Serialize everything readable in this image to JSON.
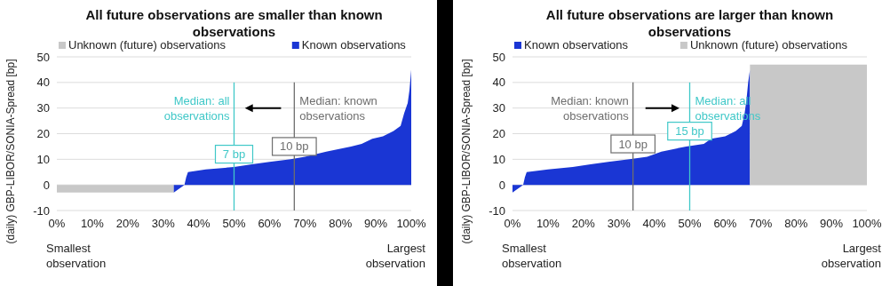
{
  "chart_data": [
    {
      "type": "area",
      "title": "All future observations are smaller than known observations",
      "ylabel": "(daily) GBP-LIBOR/SONIA-Spread [bp]",
      "legend": "top",
      "grid": "y",
      "xlim": [
        0,
        100
      ],
      "xticks": [
        {
          "value": 0,
          "label": "0%"
        },
        {
          "value": 10,
          "label": "10%"
        },
        {
          "value": 20,
          "label": "20%"
        },
        {
          "value": 30,
          "label": "30%"
        },
        {
          "value": 40,
          "label": "40%"
        },
        {
          "value": 50,
          "label": "50%"
        },
        {
          "value": 60,
          "label": "60%"
        },
        {
          "value": 70,
          "label": "70%"
        },
        {
          "value": 80,
          "label": "80%"
        },
        {
          "value": 90,
          "label": "90%"
        },
        {
          "value": 100,
          "label": "100%"
        }
      ],
      "ylim": [
        -10,
        50
      ],
      "yticks": [
        -10,
        0,
        10,
        20,
        30,
        40,
        50
      ],
      "series": [
        {
          "name": "Unknown (future) observations",
          "color": "#c8c8c8",
          "x": [
            0,
            33
          ],
          "values": [
            -3,
            -3
          ]
        },
        {
          "name": "Known observations",
          "color": "#1a36d4",
          "x": [
            33,
            36,
            36.5,
            37,
            42,
            50,
            55,
            60,
            66,
            70,
            76,
            83,
            86,
            89,
            92,
            95,
            97,
            98,
            99,
            99.5,
            100
          ],
          "values": [
            -3,
            0,
            3,
            5,
            6,
            7,
            8,
            9,
            10,
            11,
            13,
            15,
            16,
            18,
            19,
            21,
            23,
            28,
            32,
            37,
            45
          ]
        }
      ],
      "ref_lines": [
        {
          "axis": "x",
          "value": 50,
          "label": "Median: all observations",
          "color": "#40c8c8"
        },
        {
          "axis": "x",
          "value": 67,
          "label": "Median: known observations",
          "color": "#6e6e6e"
        }
      ],
      "annotations": [
        {
          "text": "7 bp",
          "x": 50,
          "y": 12
        },
        {
          "text": "10 bp",
          "x": 67,
          "y": 15
        },
        "Smallest observation",
        "Largest observation"
      ]
    },
    {
      "type": "area",
      "title": "All future observations are larger than known observations",
      "ylabel": "(daily) GBP-LIBOR/SONIA-Spread [bp]",
      "legend": "top",
      "grid": "y",
      "xlim": [
        0,
        100
      ],
      "xticks": [
        {
          "value": 0,
          "label": "0%"
        },
        {
          "value": 10,
          "label": "10%"
        },
        {
          "value": 20,
          "label": "20%"
        },
        {
          "value": 30,
          "label": "30%"
        },
        {
          "value": 40,
          "label": "40%"
        },
        {
          "value": 50,
          "label": "50%"
        },
        {
          "value": 60,
          "label": "60%"
        },
        {
          "value": 70,
          "label": "70%"
        },
        {
          "value": 80,
          "label": "80%"
        },
        {
          "value": 90,
          "label": "90%"
        },
        {
          "value": 100,
          "label": "100%"
        }
      ],
      "ylim": [
        -10,
        50
      ],
      "yticks": [
        -10,
        0,
        10,
        20,
        30,
        40,
        50
      ],
      "series": [
        {
          "name": "Known observations",
          "color": "#1a36d4",
          "x": [
            0,
            3,
            3.5,
            4,
            10,
            17,
            22,
            27,
            33,
            38,
            42,
            49,
            54,
            56,
            60,
            63,
            64.7,
            65.5,
            66,
            66.5,
            67
          ],
          "values": [
            -3,
            0,
            3,
            5,
            6,
            7,
            8,
            9,
            10,
            11,
            13,
            15,
            16,
            18,
            19,
            21,
            23,
            28,
            33,
            40,
            45
          ]
        },
        {
          "name": "Unknown (future) observations",
          "color": "#c8c8c8",
          "x": [
            67,
            100
          ],
          "values": [
            47,
            47
          ]
        }
      ],
      "ref_lines": [
        {
          "axis": "x",
          "value": 34,
          "label": "Median: known observations",
          "color": "#6e6e6e"
        },
        {
          "axis": "x",
          "value": 50,
          "label": "Median: all observations",
          "color": "#40c8c8"
        }
      ],
      "annotations": [
        {
          "text": "10 bp",
          "x": 34,
          "y": 16
        },
        {
          "text": "15 bp",
          "x": 50,
          "y": 21
        },
        "Smallest observation",
        "Largest observation"
      ]
    }
  ]
}
